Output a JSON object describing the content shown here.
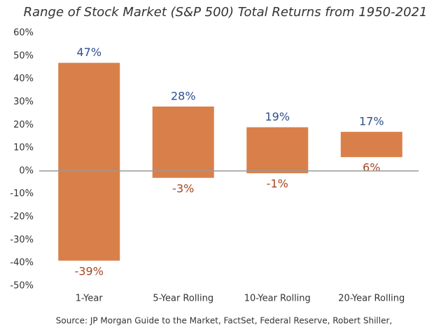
{
  "chart_data": {
    "type": "range_bar",
    "title": "Range of Stock Market (S&P 500) Total Returns from 1950-2021",
    "categories": [
      "1-Year",
      "5-Year Rolling",
      "10-Year Rolling",
      "20-Year Rolling"
    ],
    "color": "#d9804a",
    "max": {
      "values": [
        47,
        28,
        19,
        17
      ],
      "value_labels": [
        "47%",
        "28%",
        "19%",
        "17%"
      ],
      "color": "#2e4f8f"
    },
    "min": {
      "values": [
        -39,
        -3,
        -1,
        6
      ],
      "value_labels": [
        "-39%",
        "-3%",
        "-1%",
        "6%"
      ],
      "color": "#a94420"
    },
    "ylim": [
      -50,
      60
    ],
    "yticks": [
      {
        "value": -50,
        "label": "-50%"
      },
      {
        "value": -40,
        "label": "-40%"
      },
      {
        "value": -30,
        "label": "-30%"
      },
      {
        "value": -20,
        "label": "-20%"
      },
      {
        "value": -10,
        "label": "-10%"
      },
      {
        "value": 0,
        "label": "0%"
      },
      {
        "value": 10,
        "label": "10%"
      },
      {
        "value": 20,
        "label": "20%"
      },
      {
        "value": 30,
        "label": "30%"
      },
      {
        "value": 40,
        "label": "40%"
      },
      {
        "value": 50,
        "label": "50%"
      },
      {
        "value": 60,
        "label": "60%"
      }
    ],
    "grid": false,
    "source": "Source: JP Morgan Guide to the Market, FactSet, Federal Reserve, Robert Shiller,"
  }
}
